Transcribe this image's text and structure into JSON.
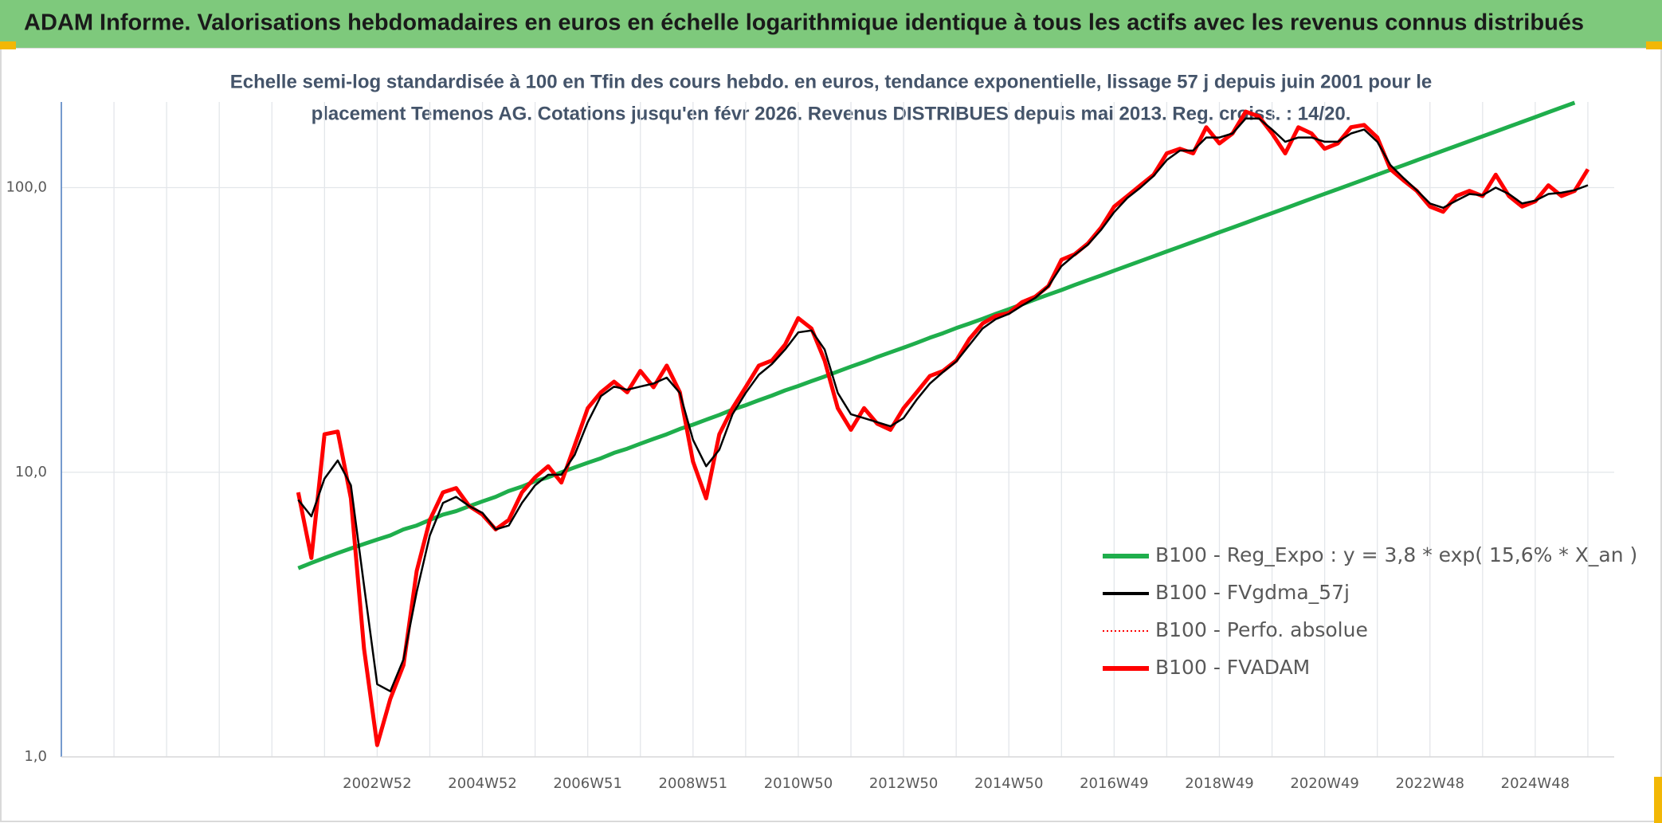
{
  "chart_data": {
    "type": "line",
    "title": "ADAM Informe. Valorisations hebdomadaires en euros en échelle logarithmique identique à tous les actifs avec les revenus connus distribués",
    "subtitle": [
      "Echelle semi-log standardisée à 100 en Tfin des cours hebdo. en euros, tendance exponentielle, lissage 57 j depuis juin 2001 pour le",
      "placement Temenos AG. Cotations jusqu'en févr 2026. Revenus DISTRIBUES depuis mai 2013. Reg. croiss. : 14/20."
    ],
    "log_y": true,
    "grid": true,
    "legend": "lower right",
    "ylim": [
      1,
      200
    ],
    "yticks": [
      {
        "value": 1,
        "label": "1,0"
      },
      {
        "value": 10,
        "label": "10,0"
      },
      {
        "value": 100,
        "label": "100,0"
      }
    ],
    "categories": [
      null,
      null,
      null,
      null,
      null,
      null,
      null,
      null,
      null,
      null,
      null,
      null,
      null,
      null,
      null,
      null,
      null,
      null,
      null,
      null,
      null,
      null,
      null,
      null,
      "2002W52",
      null,
      null,
      null,
      null,
      null,
      null,
      null,
      "2004W52",
      null,
      null,
      null,
      null,
      null,
      null,
      null,
      "2006W51",
      null,
      null,
      null,
      null,
      null,
      null,
      null,
      "2008W51",
      null,
      null,
      null,
      null,
      null,
      null,
      null,
      "2010W50",
      null,
      null,
      null,
      null,
      null,
      null,
      null,
      "2012W50",
      null,
      null,
      null,
      null,
      null,
      null,
      null,
      "2014W50",
      null,
      null,
      null,
      null,
      null,
      null,
      null,
      "2016W49",
      null,
      null,
      null,
      null,
      null,
      null,
      null,
      "2018W49",
      null,
      null,
      null,
      null,
      null,
      null,
      null,
      "2020W49",
      null,
      null,
      null,
      null,
      null,
      null,
      null,
      "2022W48",
      null,
      null,
      null,
      null,
      null,
      null,
      null,
      "2024W48",
      null,
      null,
      null,
      null,
      null
    ],
    "series": [
      {
        "name": "B100 - Reg_Expo : y = 3,8 * exp( 15,6% *  X_an )",
        "color": "#1fae4c",
        "style": "solid",
        "values": [
          null,
          null,
          null,
          null,
          null,
          null,
          null,
          null,
          null,
          null,
          null,
          null,
          null,
          null,
          null,
          null,
          null,
          null,
          4.6,
          4.8,
          5.0,
          5.2,
          5.4,
          5.6,
          5.8,
          6.0,
          6.3,
          6.5,
          6.8,
          7.1,
          7.3,
          7.6,
          7.9,
          8.2,
          8.6,
          8.9,
          9.3,
          9.6,
          10.0,
          10.4,
          10.8,
          11.2,
          11.7,
          12.1,
          12.6,
          13.1,
          13.6,
          14.2,
          14.7,
          15.3,
          15.9,
          16.6,
          17.2,
          17.9,
          18.6,
          19.4,
          20.1,
          20.9,
          21.7,
          22.6,
          23.5,
          24.4,
          25.4,
          26.4,
          27.4,
          28.5,
          29.7,
          30.8,
          32.1,
          33.3,
          34.6,
          36.0,
          37.4,
          38.9,
          40.5,
          42.1,
          43.7,
          45.5,
          47.3,
          49.1,
          51.1,
          53.1,
          55.2,
          57.4,
          59.7,
          62.0,
          64.5,
          67.0,
          69.7,
          72.4,
          75.3,
          78.3,
          81.4,
          84.6,
          88.0,
          91.5,
          95.1,
          98.8,
          102.8,
          106.8,
          111.1,
          115.5,
          120.0,
          124.8,
          129.7,
          134.9,
          140.2,
          145.7,
          151.5,
          157.5,
          163.8,
          170.2,
          177.0,
          184.0,
          191.3,
          198.8,
          null,
          null
        ]
      },
      {
        "name": "B100 - FVgdma_57j",
        "color": "#000000",
        "style": "solid",
        "values": [
          null,
          null,
          null,
          null,
          null,
          null,
          null,
          null,
          null,
          null,
          null,
          null,
          null,
          null,
          null,
          null,
          null,
          null,
          8.0,
          7.0,
          9.5,
          11.0,
          9.0,
          4.0,
          1.8,
          1.7,
          2.2,
          3.8,
          6.0,
          7.8,
          8.2,
          7.6,
          7.2,
          6.3,
          6.5,
          7.8,
          9.0,
          9.8,
          9.8,
          11.5,
          15.0,
          18.5,
          20.0,
          19.5,
          20.0,
          20.5,
          21.5,
          19.0,
          13.0,
          10.5,
          12.0,
          16.0,
          19.0,
          22.0,
          24.0,
          27.0,
          31.0,
          31.5,
          27.0,
          19.0,
          16.0,
          15.5,
          15.0,
          14.5,
          15.5,
          18.0,
          20.5,
          22.5,
          24.5,
          28.0,
          32.0,
          34.5,
          36.0,
          38.5,
          41.0,
          45.0,
          53.0,
          58.0,
          63.0,
          71.0,
          82.0,
          92.0,
          100.0,
          110,
          125,
          135,
          135,
          150,
          150,
          155,
          175,
          175,
          160,
          145,
          150,
          150,
          145,
          145,
          155,
          160,
          145,
          120,
          108,
          98,
          88,
          85,
          90,
          95,
          94,
          100,
          95,
          88,
          90,
          95,
          96,
          98,
          102,
          null
        ]
      },
      {
        "name": "B100 - Perfo. absolue",
        "color": "#ff0000",
        "style": "dotted",
        "values": [
          null,
          null,
          null,
          null,
          null,
          null,
          null,
          null,
          null,
          null,
          null,
          null,
          null,
          null,
          null,
          null,
          null,
          null,
          8.5,
          5.0,
          13.6,
          13.9,
          8.1,
          2.4,
          1.1,
          1.6,
          2.1,
          4.5,
          6.8,
          8.5,
          8.8,
          7.6,
          7.1,
          6.3,
          6.8,
          8.5,
          9.6,
          10.5,
          9.2,
          12.4,
          16.8,
          19.1,
          20.8,
          19.1,
          22.7,
          19.9,
          23.7,
          19.1,
          10.9,
          8.1,
          13.6,
          16.8,
          19.9,
          23.7,
          24.7,
          28.1,
          34.8,
          32.0,
          24.7,
          16.8,
          14.1,
          16.8,
          14.8,
          14.1,
          16.8,
          19.1,
          21.8,
          22.7,
          24.7,
          29.4,
          33.3,
          35.4,
          36.3,
          39.6,
          41.4,
          45.1,
          55.8,
          58.3,
          63.6,
          72.3,
          85.8,
          93.4,
          101.9,
          111,
          132,
          137,
          132,
          163,
          143,
          155,
          185,
          178,
          155,
          132,
          163,
          155,
          137,
          143,
          163,
          166,
          150,
          116,
          106,
          97.4,
          85.8,
          82.3,
          93.4,
          97.4,
          93.4,
          111,
          93.4,
          85.8,
          89.5,
          101.9,
          93.4,
          97.4,
          116,
          null
        ]
      },
      {
        "name": "B100 - FVADAM",
        "color": "#ff0000",
        "style": "solid",
        "values": [
          null,
          null,
          null,
          null,
          null,
          null,
          null,
          null,
          null,
          null,
          null,
          null,
          null,
          null,
          null,
          null,
          null,
          null,
          8.5,
          5.0,
          13.6,
          13.9,
          8.1,
          2.4,
          1.1,
          1.6,
          2.1,
          4.5,
          6.8,
          8.5,
          8.8,
          7.6,
          7.1,
          6.3,
          6.8,
          8.5,
          9.6,
          10.5,
          9.2,
          12.4,
          16.8,
          19.1,
          20.8,
          19.1,
          22.7,
          19.9,
          23.7,
          19.1,
          10.9,
          8.1,
          13.6,
          16.8,
          19.9,
          23.7,
          24.7,
          28.1,
          34.8,
          32.0,
          24.7,
          16.8,
          14.1,
          16.8,
          14.8,
          14.1,
          16.8,
          19.1,
          21.8,
          22.7,
          24.7,
          29.4,
          33.3,
          35.4,
          36.3,
          39.6,
          41.4,
          45.1,
          55.8,
          58.3,
          63.6,
          72.3,
          85.8,
          93.4,
          101.9,
          111,
          132,
          137,
          132,
          163,
          143,
          155,
          185,
          178,
          155,
          132,
          163,
          155,
          137,
          143,
          163,
          166,
          150,
          116,
          106,
          97.4,
          85.8,
          82.3,
          93.4,
          97.4,
          93.4,
          111,
          93.4,
          85.8,
          89.5,
          101.9,
          93.4,
          97.4,
          116,
          null
        ]
      }
    ]
  }
}
